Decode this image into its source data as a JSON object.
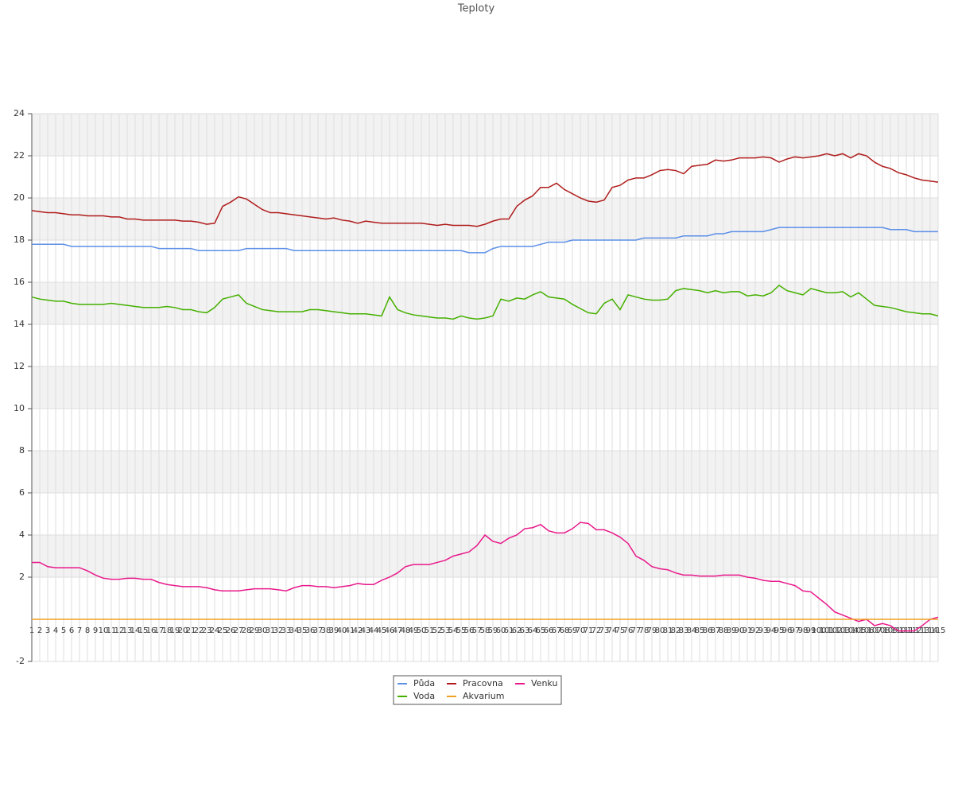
{
  "chart_data": {
    "type": "line",
    "title": "Teploty",
    "x": [
      1,
      2,
      3,
      4,
      5,
      6,
      7,
      8,
      9,
      10,
      11,
      12,
      13,
      14,
      15,
      16,
      17,
      18,
      19,
      20,
      21,
      22,
      23,
      24,
      25,
      26,
      27,
      28,
      29,
      30,
      31,
      32,
      33,
      34,
      35,
      36,
      37,
      38,
      39,
      40,
      41,
      42,
      43,
      44,
      45,
      46,
      47,
      48,
      49,
      50,
      51,
      52,
      53,
      54,
      55,
      56,
      57,
      58,
      59,
      60,
      61,
      62,
      63,
      64,
      65,
      66,
      67,
      68,
      69,
      70,
      71,
      72,
      73,
      74,
      75,
      76,
      77,
      78,
      79,
      80,
      81,
      82,
      83,
      84,
      85,
      86,
      87,
      88,
      89,
      90,
      91,
      92,
      93,
      94,
      95,
      96,
      97,
      98,
      99,
      100,
      101,
      102,
      103,
      104,
      105,
      106,
      107,
      108,
      109,
      110,
      111,
      112,
      113,
      114,
      115
    ],
    "xlim": [
      1,
      115
    ],
    "ylim": [
      -2,
      24
    ],
    "yticks": [
      -2,
      2,
      4,
      6,
      8,
      10,
      12,
      14,
      16,
      18,
      20,
      22,
      24
    ],
    "grid": true,
    "legend": "bottom",
    "series": [
      {
        "name": "Půda",
        "color": "#5b8fe8",
        "values": [
          17.8,
          17.8,
          17.8,
          17.8,
          17.8,
          17.7,
          17.7,
          17.7,
          17.7,
          17.7,
          17.7,
          17.7,
          17.7,
          17.7,
          17.7,
          17.7,
          17.6,
          17.6,
          17.6,
          17.6,
          17.6,
          17.5,
          17.5,
          17.5,
          17.5,
          17.5,
          17.5,
          17.6,
          17.6,
          17.6,
          17.6,
          17.6,
          17.6,
          17.5,
          17.5,
          17.5,
          17.5,
          17.5,
          17.5,
          17.5,
          17.5,
          17.5,
          17.5,
          17.5,
          17.5,
          17.5,
          17.5,
          17.5,
          17.5,
          17.5,
          17.5,
          17.5,
          17.5,
          17.5,
          17.5,
          17.4,
          17.4,
          17.4,
          17.6,
          17.7,
          17.7,
          17.7,
          17.7,
          17.7,
          17.8,
          17.9,
          17.9,
          17.9,
          18.0,
          18.0,
          18.0,
          18.0,
          18.0,
          18.0,
          18.0,
          18.0,
          18.0,
          18.1,
          18.1,
          18.1,
          18.1,
          18.1,
          18.2,
          18.2,
          18.2,
          18.2,
          18.3,
          18.3,
          18.4,
          18.4,
          18.4,
          18.4,
          18.4,
          18.5,
          18.6,
          18.6,
          18.6,
          18.6,
          18.6,
          18.6,
          18.6,
          18.6,
          18.6,
          18.6,
          18.6,
          18.6,
          18.6,
          18.6,
          18.5,
          18.5,
          18.5,
          18.4,
          18.4,
          18.4,
          18.4
        ]
      },
      {
        "name": "Pracovna",
        "color": "#b01c1c",
        "values": [
          19.4,
          19.35,
          19.3,
          19.3,
          19.25,
          19.2,
          19.2,
          19.15,
          19.15,
          19.15,
          19.1,
          19.1,
          19.0,
          19.0,
          18.95,
          18.95,
          18.95,
          18.95,
          18.95,
          18.9,
          18.9,
          18.85,
          18.75,
          18.8,
          19.6,
          19.8,
          20.05,
          19.95,
          19.7,
          19.45,
          19.3,
          19.3,
          19.25,
          19.2,
          19.15,
          19.1,
          19.05,
          19.0,
          19.05,
          18.95,
          18.9,
          18.8,
          18.9,
          18.85,
          18.8,
          18.8,
          18.8,
          18.8,
          18.8,
          18.8,
          18.75,
          18.7,
          18.75,
          18.7,
          18.7,
          18.7,
          18.65,
          18.75,
          18.9,
          19.0,
          19.0,
          19.6,
          19.9,
          20.1,
          20.5,
          20.5,
          20.7,
          20.4,
          20.2,
          20.0,
          19.85,
          19.8,
          19.9,
          20.5,
          20.6,
          20.85,
          20.95,
          20.95,
          21.1,
          21.3,
          21.35,
          21.3,
          21.15,
          21.5,
          21.55,
          21.6,
          21.8,
          21.75,
          21.8,
          21.9,
          21.9,
          21.9,
          21.95,
          21.9,
          21.7,
          21.85,
          21.95,
          21.9,
          21.95,
          22.0,
          22.1,
          22.0,
          22.1,
          21.9,
          22.1,
          22.0,
          21.7,
          21.5,
          21.4,
          21.2,
          21.1,
          20.95,
          20.85,
          20.8,
          20.75
        ]
      },
      {
        "name": "Venku",
        "color": "#e8198b",
        "values": [
          2.7,
          2.7,
          2.5,
          2.45,
          2.45,
          2.45,
          2.45,
          2.3,
          2.1,
          1.95,
          1.9,
          1.9,
          1.95,
          1.95,
          1.9,
          1.9,
          1.75,
          1.65,
          1.6,
          1.55,
          1.55,
          1.55,
          1.5,
          1.4,
          1.35,
          1.35,
          1.35,
          1.4,
          1.45,
          1.45,
          1.45,
          1.4,
          1.35,
          1.5,
          1.6,
          1.6,
          1.55,
          1.55,
          1.5,
          1.55,
          1.6,
          1.7,
          1.65,
          1.65,
          1.85,
          2.0,
          2.2,
          2.5,
          2.6,
          2.6,
          2.6,
          2.7,
          2.8,
          3.0,
          3.1,
          3.2,
          3.5,
          4.0,
          3.7,
          3.6,
          3.85,
          4.0,
          4.3,
          4.35,
          4.5,
          4.2,
          4.1,
          4.1,
          4.3,
          4.6,
          4.55,
          4.25,
          4.25,
          4.1,
          3.9,
          3.6,
          3.0,
          2.8,
          2.5,
          2.4,
          2.35,
          2.2,
          2.1,
          2.1,
          2.05,
          2.05,
          2.05,
          2.1,
          2.1,
          2.1,
          2.0,
          1.95,
          1.85,
          1.8,
          1.8,
          1.7,
          1.6,
          1.35,
          1.3,
          1.0,
          0.7,
          0.35,
          0.2,
          0.05,
          -0.1,
          0.0,
          -0.3,
          -0.2,
          -0.3,
          -0.55,
          -0.55,
          -0.55,
          -0.3,
          0.0,
          0.1
        ]
      },
      {
        "name": "Voda",
        "color": "#45b000",
        "values": [
          15.3,
          15.2,
          15.15,
          15.1,
          15.1,
          15.0,
          14.95,
          14.95,
          14.95,
          14.95,
          15.0,
          14.95,
          14.9,
          14.85,
          14.8,
          14.8,
          14.8,
          14.85,
          14.8,
          14.7,
          14.7,
          14.6,
          14.55,
          14.8,
          15.2,
          15.3,
          15.4,
          15.0,
          14.85,
          14.7,
          14.65,
          14.6,
          14.6,
          14.6,
          14.6,
          14.7,
          14.7,
          14.65,
          14.6,
          14.55,
          14.5,
          14.5,
          14.5,
          14.45,
          14.4,
          15.3,
          14.7,
          14.55,
          14.45,
          14.4,
          14.35,
          14.3,
          14.3,
          14.25,
          14.4,
          14.3,
          14.25,
          14.3,
          14.4,
          15.2,
          15.1,
          15.25,
          15.2,
          15.4,
          15.55,
          15.3,
          15.25,
          15.2,
          14.95,
          14.75,
          14.55,
          14.5,
          15.0,
          15.2,
          14.7,
          15.4,
          15.3,
          15.2,
          15.15,
          15.15,
          15.2,
          15.6,
          15.7,
          15.65,
          15.6,
          15.5,
          15.6,
          15.5,
          15.55,
          15.55,
          15.35,
          15.4,
          15.35,
          15.5,
          15.85,
          15.6,
          15.5,
          15.4,
          15.7,
          15.6,
          15.5,
          15.5,
          15.55,
          15.3,
          15.5,
          15.2,
          14.9,
          14.85,
          14.8,
          14.7,
          14.6,
          14.55,
          14.5,
          14.5,
          14.4
        ]
      },
      {
        "name": "Akvarium",
        "color": "#f0a020",
        "values": [
          0,
          0,
          0,
          0,
          0,
          0,
          0,
          0,
          0,
          0,
          0,
          0,
          0,
          0,
          0,
          0,
          0,
          0,
          0,
          0,
          0,
          0,
          0,
          0,
          0,
          0,
          0,
          0,
          0,
          0,
          0,
          0,
          0,
          0,
          0,
          0,
          0,
          0,
          0,
          0,
          0,
          0,
          0,
          0,
          0,
          0,
          0,
          0,
          0,
          0,
          0,
          0,
          0,
          0,
          0,
          0,
          0,
          0,
          0,
          0,
          0,
          0,
          0,
          0,
          0,
          0,
          0,
          0,
          0,
          0,
          0,
          0,
          0,
          0,
          0,
          0,
          0,
          0,
          0,
          0,
          0,
          0,
          0,
          0,
          0,
          0,
          0,
          0,
          0,
          0,
          0,
          0,
          0,
          0,
          0,
          0,
          0,
          0,
          0,
          0,
          0,
          0,
          0,
          0,
          0,
          0,
          0,
          0,
          0,
          0,
          0,
          0,
          0,
          0,
          0
        ]
      }
    ]
  }
}
